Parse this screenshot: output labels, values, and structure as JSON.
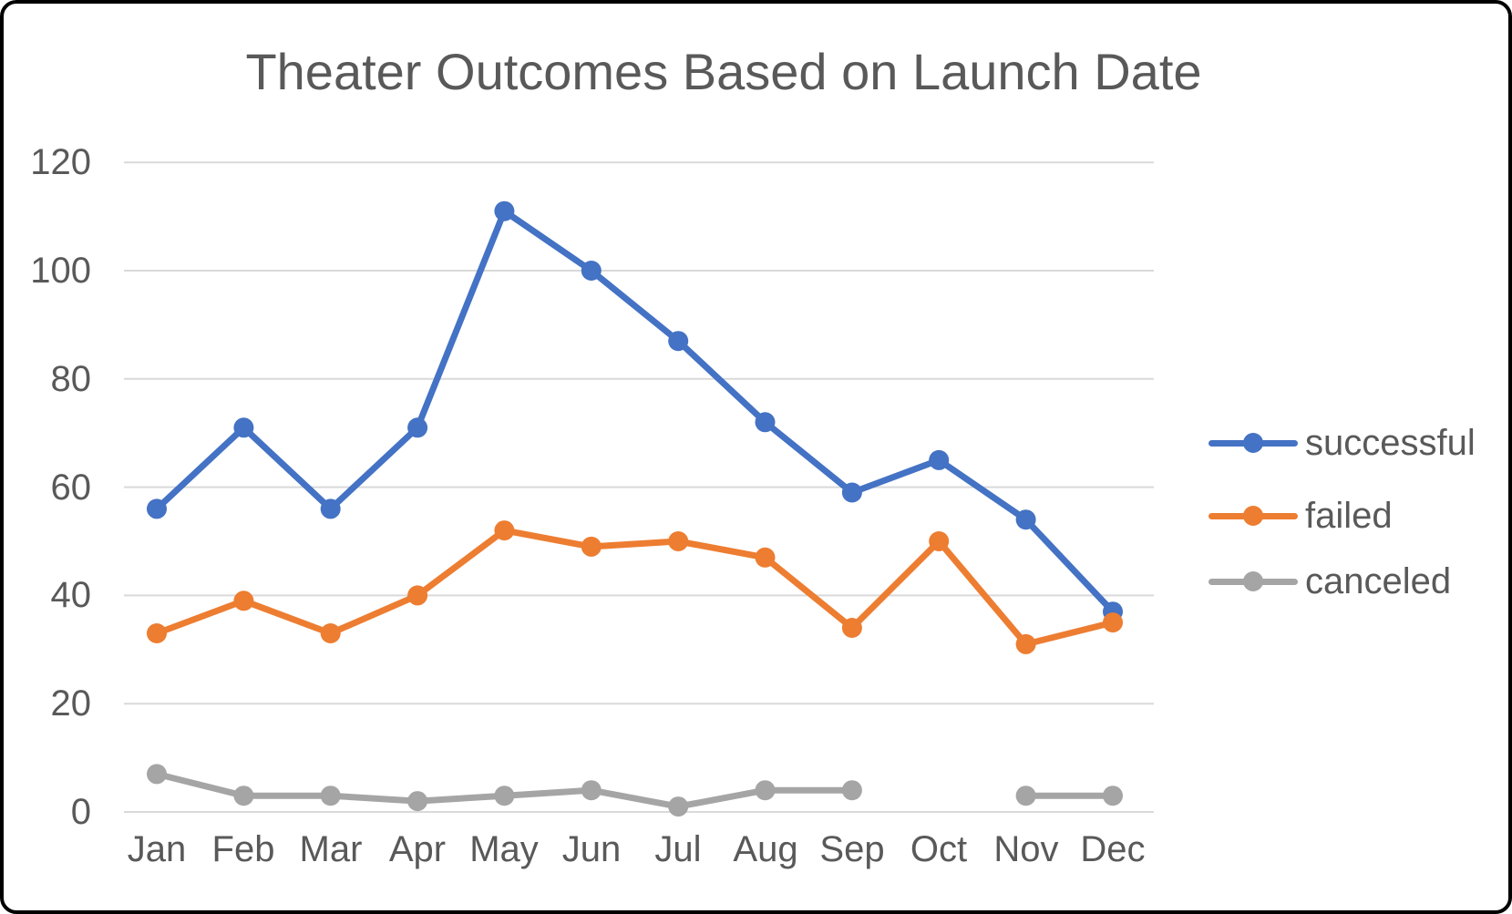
{
  "chart_data": {
    "type": "line",
    "title": "Theater Outcomes Based on Launch Date",
    "xlabel": "",
    "ylabel": "",
    "categories": [
      "Jan",
      "Feb",
      "Mar",
      "Apr",
      "May",
      "Jun",
      "Jul",
      "Aug",
      "Sep",
      "Oct",
      "Nov",
      "Dec"
    ],
    "series": [
      {
        "name": "successful",
        "color": "#4472C4",
        "values": [
          56,
          71,
          56,
          71,
          111,
          100,
          87,
          72,
          59,
          65,
          54,
          37
        ]
      },
      {
        "name": "failed",
        "color": "#ED7D31",
        "values": [
          33,
          39,
          33,
          40,
          52,
          49,
          50,
          47,
          34,
          50,
          31,
          35
        ]
      },
      {
        "name": "canceled",
        "color": "#A5A5A5",
        "values": [
          7,
          3,
          3,
          2,
          3,
          4,
          1,
          4,
          4,
          null,
          3,
          3
        ]
      }
    ],
    "ylim": [
      0,
      120
    ],
    "yticks": [
      0,
      20,
      40,
      60,
      80,
      100,
      120
    ],
    "grid": true,
    "legend_position": "right",
    "gridline_color": "#D9D9D9",
    "text_color": "#595959",
    "notes": "canceled series has no data point for Oct (gap in line)"
  }
}
